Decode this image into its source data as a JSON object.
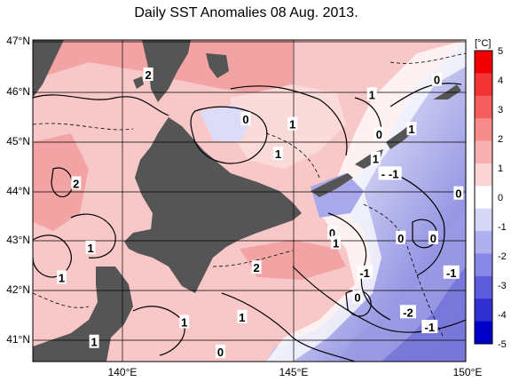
{
  "title": "Daily SST Anomalies 08 Aug. 2013.",
  "map": {
    "lat_ticks": [
      "47°N",
      "46°N",
      "45°N",
      "44°N",
      "43°N",
      "42°N",
      "41°N"
    ],
    "lon_ticks": [
      "140°E",
      "145°E",
      "150°E"
    ],
    "lat_range": [
      40.5,
      47.0
    ],
    "lon_range": [
      138.0,
      150.0
    ],
    "contour_labels": [
      {
        "text": "2",
        "lon": 141.2,
        "lat": 46.3
      },
      {
        "text": "2",
        "lon": 139.2,
        "lat": 44.1
      },
      {
        "text": "2",
        "lon": 144.2,
        "lat": 42.4
      },
      {
        "text": "0",
        "lon": 143.9,
        "lat": 45.4
      },
      {
        "text": "1",
        "lon": 145.2,
        "lat": 45.3
      },
      {
        "text": "1",
        "lon": 144.8,
        "lat": 44.7
      },
      {
        "text": "1",
        "lon": 147.4,
        "lat": 45.9
      },
      {
        "text": "0",
        "lon": 149.2,
        "lat": 46.2
      },
      {
        "text": "0",
        "lon": 147.6,
        "lat": 45.1
      },
      {
        "text": "1",
        "lon": 148.5,
        "lat": 45.2
      },
      {
        "text": "1",
        "lon": 147.5,
        "lat": 44.6
      },
      {
        "text": "-1",
        "lon": 147.8,
        "lat": 44.3
      },
      {
        "text": "-1",
        "lon": 148.0,
        "lat": 44.3
      },
      {
        "text": "0",
        "lon": 149.8,
        "lat": 43.9
      },
      {
        "text": "0",
        "lon": 146.3,
        "lat": 43.1
      },
      {
        "text": "1",
        "lon": 146.4,
        "lat": 42.9
      },
      {
        "text": "0",
        "lon": 148.2,
        "lat": 43.0
      },
      {
        "text": "0",
        "lon": 149.1,
        "lat": 43.0
      },
      {
        "text": "1",
        "lon": 139.6,
        "lat": 42.8
      },
      {
        "text": "1",
        "lon": 138.8,
        "lat": 42.2
      },
      {
        "text": "-1",
        "lon": 147.2,
        "lat": 42.3
      },
      {
        "text": "-1",
        "lon": 149.6,
        "lat": 42.3
      },
      {
        "text": "0",
        "lon": 147.0,
        "lat": 41.8
      },
      {
        "text": "-2",
        "lon": 148.4,
        "lat": 41.5
      },
      {
        "text": "-1",
        "lon": 149.0,
        "lat": 41.2
      },
      {
        "text": "1",
        "lon": 142.2,
        "lat": 41.3
      },
      {
        "text": "1",
        "lon": 143.8,
        "lat": 41.4
      },
      {
        "text": "1",
        "lon": 139.7,
        "lat": 40.9
      },
      {
        "text": "0",
        "lon": 143.2,
        "lat": 40.7
      }
    ]
  },
  "colorbar": {
    "unit": "[°C]",
    "labels": [
      "5",
      "4",
      "3",
      "2",
      "1",
      "0",
      "-1",
      "-2",
      "-3",
      "-4",
      "-5"
    ],
    "colors": [
      "#ee0000",
      "#f33434",
      "#f55e5e",
      "#f78a8a",
      "#f9b0b0",
      "#fad4d4",
      "#ffffff",
      "#d6d6f6",
      "#b0b0ee",
      "#8888e6",
      "#5c5cdc",
      "#3030d0",
      "#0000c8"
    ]
  },
  "colors": {
    "land": "#555555",
    "warm1": "#fbd6d6",
    "warm2": "#f4aeae",
    "warm3": "#ee9090",
    "cool1": "#dcdcf8",
    "cool2": "#b8b8ee",
    "cool3": "#8c8cde"
  }
}
